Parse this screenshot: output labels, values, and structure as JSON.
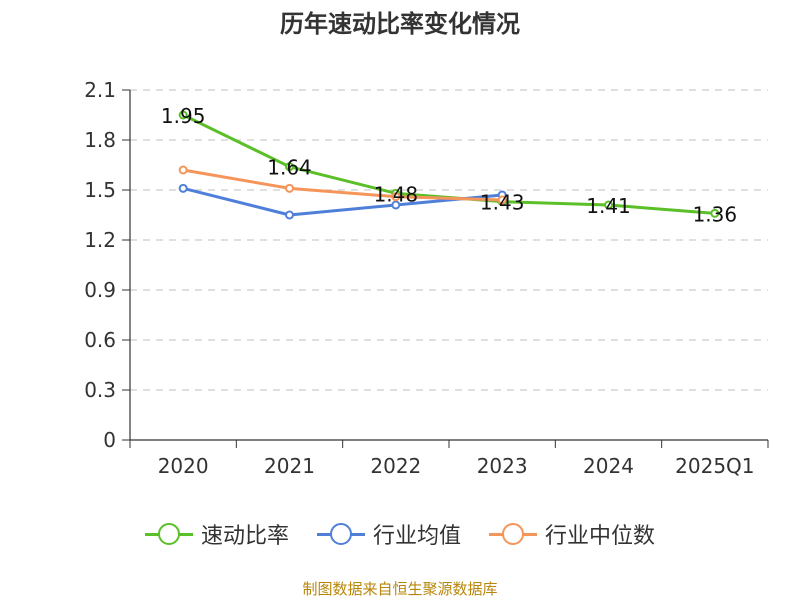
{
  "chart_data": {
    "type": "line",
    "title": "历年速动比率变化情况",
    "categories": [
      "2020",
      "2021",
      "2022",
      "2023",
      "2024",
      "2025Q1"
    ],
    "ylim": [
      0,
      2.1
    ],
    "yticks": [
      "0",
      "0.3",
      "0.6",
      "0.9",
      "1.2",
      "1.5",
      "1.8",
      "2.1"
    ],
    "grid": true,
    "legend_position": "bottom",
    "series": [
      {
        "name": "速动比率",
        "color": "#5bbf28",
        "values": [
          1.95,
          1.64,
          1.48,
          1.43,
          1.41,
          1.36
        ],
        "labels": [
          "1.95",
          "1.64",
          "1.48",
          "1.43",
          "1.41",
          "1.36"
        ]
      },
      {
        "name": "行业均值",
        "color": "#4f7fd9",
        "values": [
          1.51,
          1.35,
          1.41,
          1.47,
          null,
          null
        ]
      },
      {
        "name": "行业中位数",
        "color": "#f5955a",
        "values": [
          1.62,
          1.51,
          1.46,
          1.44,
          null,
          null
        ]
      }
    ]
  },
  "source": "制图数据来自恒生聚源数据库"
}
